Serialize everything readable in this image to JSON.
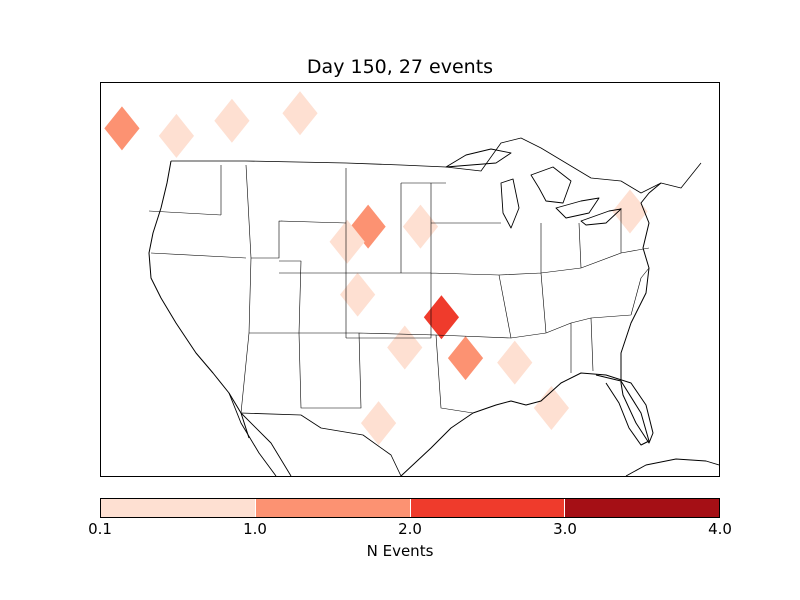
{
  "title": "Day 150, 27 events",
  "colorbar": {
    "label": "N Events",
    "ticks": [
      "0.1",
      "1.0",
      "2.0",
      "3.0",
      "4.0"
    ],
    "bins": [
      {
        "range": [
          0.1,
          1.0
        ],
        "color": "#fee0d2"
      },
      {
        "range": [
          1.0,
          2.0
        ],
        "color": "#fc9272"
      },
      {
        "range": [
          2.0,
          3.0
        ],
        "color": "#ef3b2c"
      },
      {
        "range": [
          3.0,
          4.0
        ],
        "color": "#a50f15"
      }
    ]
  },
  "map": {
    "region": "continental-united-states",
    "lon_range": [
      -125,
      -66
    ],
    "lat_range": [
      24,
      50
    ],
    "event_areas": [
      {
        "name": "pacific-northwest",
        "lon": -123.0,
        "lat": 47.0,
        "value": 1.5
      },
      {
        "name": "north-idaho",
        "lon": -117.8,
        "lat": 46.5,
        "value": 0.5
      },
      {
        "name": "montana",
        "lon": -112.5,
        "lat": 47.5,
        "value": 0.5
      },
      {
        "name": "north-dakota",
        "lon": -106.0,
        "lat": 48.0,
        "value": 0.5
      },
      {
        "name": "northeast",
        "lon": -74.5,
        "lat": 41.5,
        "value": 0.5
      },
      {
        "name": "nebraska",
        "lon": -99.5,
        "lat": 40.5,
        "value": 1.5
      },
      {
        "name": "kansas",
        "lon": -101.5,
        "lat": 39.5,
        "value": 0.5
      },
      {
        "name": "iowa",
        "lon": -94.5,
        "lat": 40.5,
        "value": 0.5
      },
      {
        "name": "oklahoma-panhandle",
        "lon": -100.5,
        "lat": 36.0,
        "value": 0.5
      },
      {
        "name": "arkansas",
        "lon": -92.5,
        "lat": 34.5,
        "value": 2.5
      },
      {
        "name": "texas-east",
        "lon": -96.0,
        "lat": 32.5,
        "value": 0.5
      },
      {
        "name": "louisiana",
        "lon": -90.2,
        "lat": 31.8,
        "value": 1.5
      },
      {
        "name": "alabama-georgia",
        "lon": -85.5,
        "lat": 31.5,
        "value": 0.5
      },
      {
        "name": "florida",
        "lon": -82.0,
        "lat": 28.5,
        "value": 0.5
      },
      {
        "name": "south-texas",
        "lon": -98.5,
        "lat": 27.5,
        "value": 0.5
      }
    ]
  }
}
